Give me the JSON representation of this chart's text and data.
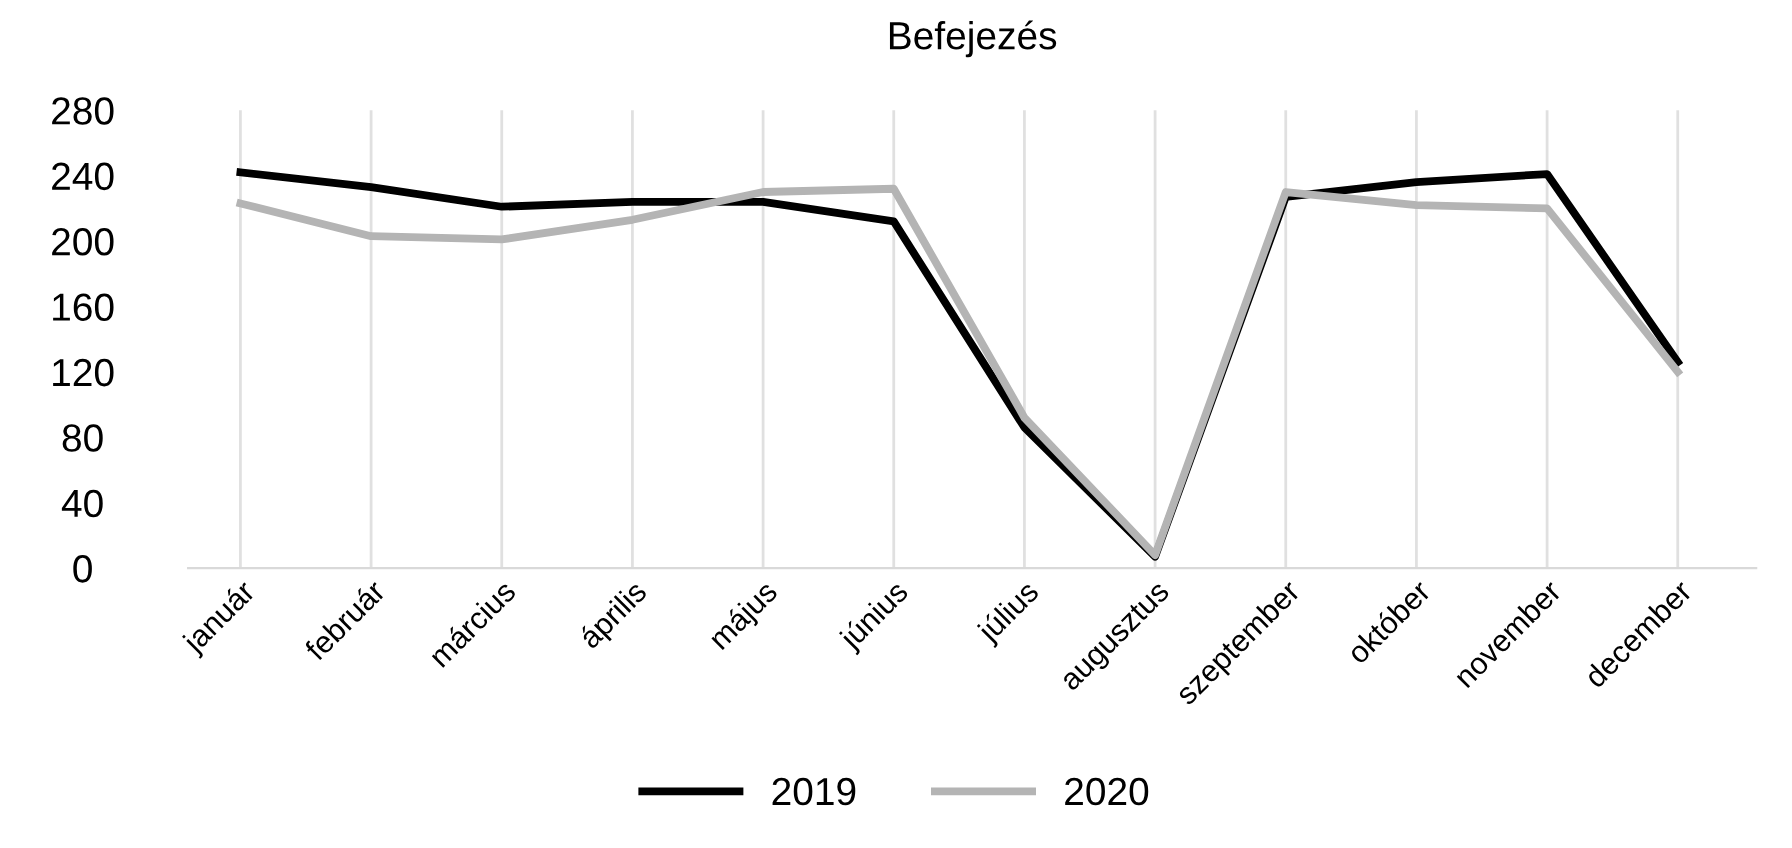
{
  "chart_data": {
    "type": "line",
    "title": "Befejezés",
    "categories": [
      "január",
      "február",
      "március",
      "április",
      "május",
      "június",
      "július",
      "augusztus",
      "szeptember",
      "október",
      "november",
      "december"
    ],
    "series": [
      {
        "name": "2019",
        "color": "#000000",
        "values": [
          242,
          233,
          221,
          224,
          224,
          212,
          86,
          7,
          227,
          236,
          241,
          126
        ]
      },
      {
        "name": "2020",
        "color": "#b4b4b4",
        "values": [
          223,
          203,
          201,
          213,
          230,
          232,
          92,
          8,
          230,
          222,
          220,
          120
        ]
      }
    ],
    "ylim": [
      0,
      280
    ],
    "yticks": [
      0,
      40,
      80,
      120,
      160,
      200,
      240,
      280
    ],
    "grid": "x",
    "legend": "bottom"
  }
}
